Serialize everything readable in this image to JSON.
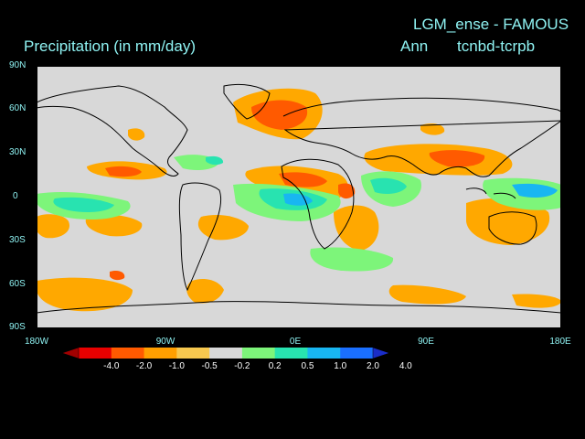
{
  "header": {
    "experiment": "LGM_ense - FAMOUS",
    "variable": "Precipitation (in mm/day)",
    "season": "Ann",
    "difference": "tcnbd-tcrpb"
  },
  "axes": {
    "lat_labels": [
      "90N",
      "60N",
      "30N",
      "0",
      "30S",
      "60S",
      "90S"
    ],
    "lon_labels": [
      "180W",
      "90W",
      "0E",
      "90E",
      "180E"
    ]
  },
  "colorbar": {
    "labels": [
      "-4.0",
      "-2.0",
      "-1.0",
      "-0.5",
      "-0.2",
      "0.2",
      "0.5",
      "1.0",
      "2.0",
      "4.0"
    ],
    "colors": [
      "#a00000",
      "#e80000",
      "#ff5a00",
      "#ff9f00",
      "#f7c84f",
      "#d8d8d8",
      "#7df57a",
      "#28e3b0",
      "#18b6f2",
      "#1a6fff",
      "#1a2dc8"
    ]
  },
  "map_colors": {
    "background": "#d8d8d8",
    "coast": "#000000"
  }
}
